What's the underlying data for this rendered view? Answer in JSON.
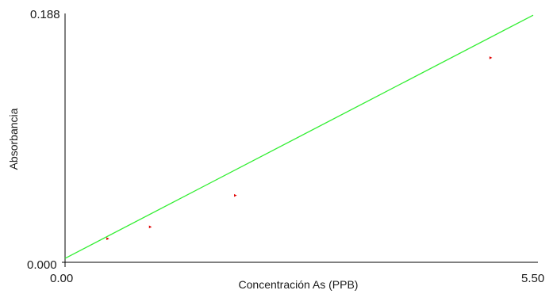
{
  "chart_data": {
    "type": "scatter",
    "xlabel": "Concentración As (PPB)",
    "ylabel": "Absorbancia",
    "xlim": [
      0,
      5.5
    ],
    "ylim": [
      0,
      0.188
    ],
    "x_tick_labels": [
      "0.00",
      "5.50"
    ],
    "y_tick_labels": [
      "0.000",
      "0.188"
    ],
    "grid": false,
    "series": [
      {
        "type": "scatter",
        "color": "#e00000",
        "x": [
          0.5,
          1.0,
          2.0,
          5.0
        ],
        "y": [
          0.018,
          0.027,
          0.051,
          0.156
        ]
      },
      {
        "type": "line",
        "color": "#33ee33",
        "x": [
          0,
          5.5
        ],
        "y": [
          0.003,
          0.1885
        ]
      }
    ]
  }
}
